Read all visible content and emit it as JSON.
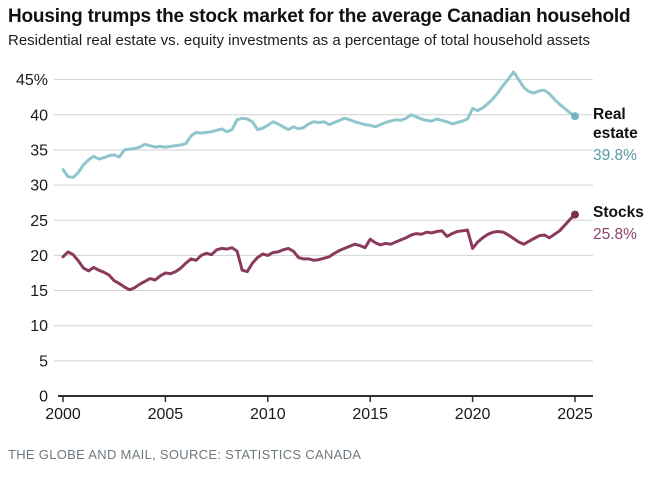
{
  "header": {
    "title": "Housing trumps the stock market for the average Canadian household",
    "subtitle": "Residential real estate vs. equity investments as a percentage of total household assets"
  },
  "footer": {
    "source": "THE GLOBE AND MAIL, SOURCE: STATISTICS CANADA"
  },
  "chart_data": {
    "type": "line",
    "title": "Housing trumps the stock market for the average Canadian household",
    "subtitle": "Residential real estate vs. equity investments as a percentage of total household assets",
    "xlabel": "",
    "ylabel": "Percentage of total household assets",
    "xlim": [
      2000,
      2025.9
    ],
    "ylim": [
      0,
      46.5
    ],
    "grid": true,
    "legend_position": "right-end-labels",
    "x_start": 2000,
    "x_step": 0.25,
    "x_frequency": "quarterly",
    "x_ticks": [
      2000,
      2005,
      2010,
      2015,
      2020,
      2025
    ],
    "y_ticks": [
      {
        "value": 0,
        "label": "0"
      },
      {
        "value": 5,
        "label": "5"
      },
      {
        "value": 10,
        "label": "10"
      },
      {
        "value": 15,
        "label": "15"
      },
      {
        "value": 20,
        "label": "20"
      },
      {
        "value": 25,
        "label": "25"
      },
      {
        "value": 30,
        "label": "30"
      },
      {
        "value": 35,
        "label": "35"
      },
      {
        "value": 40,
        "label": "40"
      },
      {
        "value": 45,
        "label": "45%"
      }
    ],
    "colors": {
      "grid": "#d2d2d2",
      "axis": "#2e2e2e",
      "background": "#ffffff"
    },
    "series": [
      {
        "id": "real-estate",
        "name": "Real estate",
        "end_label": "Real estate",
        "end_value_label": "39.8%",
        "end_value": 39.8,
        "color": "#8fc6cc",
        "dot_color": "#74b2bd",
        "value_color": "#5b98a2",
        "values": [
          32.2,
          31.2,
          31.1,
          31.8,
          32.9,
          33.6,
          34.1,
          33.7,
          33.9,
          34.2,
          34.3,
          34.0,
          35.0,
          35.1,
          35.2,
          35.4,
          35.8,
          35.6,
          35.4,
          35.5,
          35.4,
          35.5,
          35.6,
          35.7,
          35.9,
          37.0,
          37.5,
          37.4,
          37.5,
          37.6,
          37.8,
          38.0,
          37.6,
          37.9,
          39.3,
          39.5,
          39.4,
          39.0,
          37.9,
          38.1,
          38.5,
          39.0,
          38.7,
          38.3,
          37.9,
          38.3,
          38.0,
          38.2,
          38.7,
          39.0,
          38.9,
          39.0,
          38.6,
          38.9,
          39.2,
          39.5,
          39.3,
          39.0,
          38.8,
          38.6,
          38.5,
          38.3,
          38.6,
          38.9,
          39.1,
          39.3,
          39.2,
          39.5,
          40.0,
          39.7,
          39.4,
          39.2,
          39.1,
          39.4,
          39.2,
          39.0,
          38.7,
          38.9,
          39.1,
          39.4,
          40.9,
          40.6,
          41.0,
          41.6,
          42.3,
          43.2,
          44.2,
          45.1,
          46.1,
          45.0,
          43.9,
          43.3,
          43.1,
          43.4,
          43.5,
          43.0,
          42.2,
          41.5,
          40.9,
          40.3,
          39.8
        ]
      },
      {
        "id": "stocks",
        "name": "Stocks",
        "end_label": "Stocks",
        "end_value_label": "25.8%",
        "end_value": 25.8,
        "color": "#8a3b5d",
        "dot_color": "#7a2f52",
        "value_color": "#8f4268",
        "values": [
          19.8,
          20.5,
          20.1,
          19.2,
          18.2,
          17.8,
          18.3,
          17.9,
          17.6,
          17.2,
          16.4,
          16.0,
          15.5,
          15.1,
          15.4,
          15.9,
          16.3,
          16.7,
          16.5,
          17.1,
          17.5,
          17.4,
          17.7,
          18.2,
          18.9,
          19.5,
          19.3,
          20.0,
          20.3,
          20.1,
          20.8,
          21.0,
          20.9,
          21.1,
          20.6,
          17.9,
          17.7,
          18.9,
          19.7,
          20.2,
          20.0,
          20.4,
          20.5,
          20.8,
          21.0,
          20.6,
          19.7,
          19.5,
          19.5,
          19.3,
          19.4,
          19.6,
          19.8,
          20.3,
          20.7,
          21.0,
          21.3,
          21.6,
          21.4,
          21.1,
          22.3,
          21.8,
          21.5,
          21.7,
          21.6,
          21.9,
          22.2,
          22.5,
          22.9,
          23.1,
          23.0,
          23.3,
          23.2,
          23.4,
          23.5,
          22.7,
          23.1,
          23.4,
          23.5,
          23.6,
          21.0,
          21.9,
          22.5,
          23.0,
          23.3,
          23.4,
          23.3,
          22.9,
          22.4,
          21.9,
          21.6,
          22.0,
          22.4,
          22.8,
          22.9,
          22.5,
          23.0,
          23.5,
          24.3,
          25.1,
          25.8
        ]
      }
    ]
  }
}
